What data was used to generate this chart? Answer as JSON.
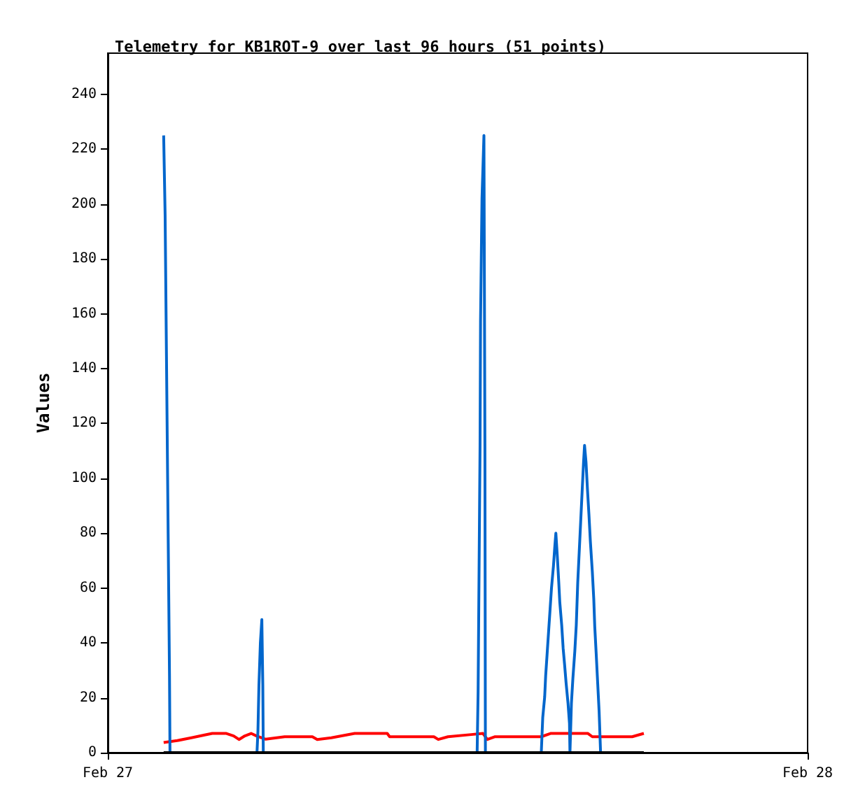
{
  "chart_data": {
    "type": "line",
    "title": "Telemetry for KB1ROT-9 over last 96 hours (51 points)",
    "ylabel": "Values",
    "xlim": [
      "--02-27",
      "--02-28"
    ],
    "xticks": [
      {
        "value": "--02-27",
        "label": "Feb 27"
      },
      {
        "value": "--02-28",
        "label": "Feb 28"
      }
    ],
    "ylim": [
      0,
      255
    ],
    "yticks": [
      0,
      20,
      40,
      60,
      80,
      100,
      120,
      140,
      160,
      180,
      200,
      220,
      240
    ],
    "grid": false,
    "marker": "none",
    "line_style": "solid",
    "series": [
      {
        "color": "#ff0000",
        "x": [
          "--02-27T01:55",
          "--02-27T02:23",
          "--02-27T02:52",
          "--02-27T03:21",
          "--02-27T03:35",
          "--02-27T04:04",
          "--02-27T04:19",
          "--02-27T04:30",
          "--02-27T04:42",
          "--02-27T04:55",
          "--02-27T05:06",
          "--02-27T05:25",
          "--02-27T06:04",
          "--02-27T07:01",
          "--02-27T07:11",
          "--02-27T07:40",
          "--02-27T08:28",
          "--02-27T09:35",
          "--02-27T09:40",
          "--02-27T11:11",
          "--02-27T11:20",
          "--02-27T11:40",
          "--02-27T12:28",
          "--02-27T12:52",
          "--02-27T13:01",
          "--02-27T13:16",
          "--02-27T14:52",
          "--02-27T15:11",
          "--02-27T16:28",
          "--02-27T16:37",
          "--02-27T17:59",
          "--02-27T18:23"
        ],
        "values": [
          3.7,
          4.4,
          5.4,
          6.5,
          7,
          7,
          6.1,
          4.8,
          6.1,
          7,
          6.1,
          4.9,
          5.8,
          5.8,
          4.8,
          5.4,
          7,
          7,
          5.8,
          5.8,
          4.8,
          5.8,
          6.6,
          7,
          4.8,
          5.8,
          5.8,
          7,
          7,
          5.8,
          5.8,
          7
        ]
      },
      {
        "color": "#0066cc",
        "x": [
          "--02-27T01:55",
          "--02-27T01:58",
          "--02-27T02:01",
          "--02-27T02:04",
          "--02-27T02:07",
          "--02-27T02:08",
          "--02-27T05:07",
          "--02-27T05:09",
          "--02-27T05:11",
          "--02-27T05:14",
          "--02-27T05:17",
          "--02-27T05:19",
          "--02-27T05:20",
          "--02-27T12:40",
          "--02-27T12:42",
          "--02-27T12:44",
          "--02-27T12:46",
          "--02-27T12:47",
          "--02-27T12:50",
          "--02-27T12:54",
          "--02-27T12:56",
          "--02-27T12:57",
          "--02-27T14:52",
          "--02-27T14:55",
          "--02-27T14:59",
          "--02-27T15:01",
          "--02-27T15:04",
          "--02-27T15:07",
          "--02-27T15:10",
          "--02-27T15:13",
          "--02-27T15:17",
          "--02-27T15:20",
          "--02-27T15:22",
          "--02-27T15:25",
          "--02-27T15:28",
          "--02-27T15:30",
          "--02-27T15:34",
          "--02-27T15:37",
          "--02-27T15:40",
          "--02-27T15:43",
          "--02-27T15:47",
          "--02-27T15:50",
          "--02-27T15:51",
          "--02-27T15:54",
          "--02-27T15:57",
          "--02-27T16:01",
          "--02-27T16:04",
          "--02-27T16:07",
          "--02-27T16:10",
          "--02-27T16:13",
          "--02-27T16:16",
          "--02-27T16:19",
          "--02-27T16:21",
          "--02-27T16:24",
          "--02-27T16:27",
          "--02-27T16:30",
          "--02-27T16:33",
          "--02-27T16:37",
          "--02-27T16:40",
          "--02-27T16:42",
          "--02-27T16:45",
          "--02-27T16:48",
          "--02-27T16:51",
          "--02-27T16:54"
        ],
        "values": [
          225,
          196,
          140,
          84,
          28,
          0,
          0,
          8,
          24.5,
          40,
          48.5,
          24.5,
          0,
          0,
          22,
          67,
          112,
          157,
          202,
          225,
          112,
          0,
          0,
          12.8,
          20.4,
          28,
          36,
          44,
          52,
          60,
          68,
          75.6,
          80,
          71.5,
          62,
          55,
          46.5,
          38,
          32,
          25.5,
          18,
          10.7,
          0,
          18,
          27,
          37,
          46.5,
          62,
          73,
          84,
          95,
          106,
          112,
          106,
          96,
          87,
          77,
          66,
          56,
          46,
          36,
          25.5,
          15,
          0
        ]
      },
      {
        "color": "#000000",
        "x": [
          "--02-27T01:55",
          "--02-27T18:23"
        ],
        "values": [
          0,
          0
        ]
      }
    ]
  }
}
